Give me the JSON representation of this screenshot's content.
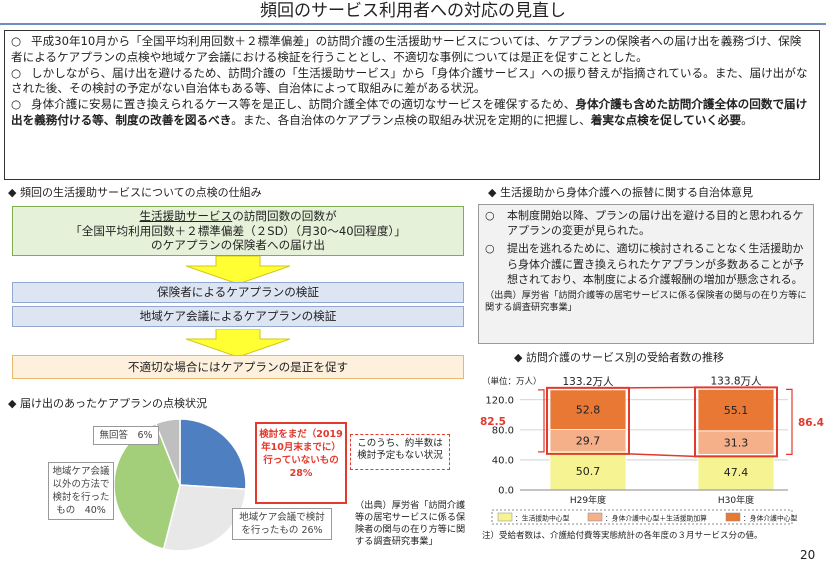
{
  "title": "頻回のサービス利用者への対応の見直し",
  "summary": {
    "bullet": "○",
    "p1": "平成30年10月から「全国平均利用回数＋２標準偏差」の訪問介護の生活援助サービスについては、ケアプランの保険者への届け出を義務づけ、保険者によるケアプランの点検や地域ケア会議における検証を行うこととし、不適切な事例については是正を促すこととした。",
    "p2": "しかしながら、届け出を避けるため、訪問介護の「生活援助サービス」から「身体介護サービス」への振り替えが指摘されている。また、届け出がなされた後、その検討の予定がない自治体もある等、自治体によって取組みに差がある状況。",
    "p3_a": "身体介護に安易に置き換えられるケース等を是正し、訪問介護全体での適切なサービスを確保するため、",
    "p3_b": "身体介護も含めた訪問介護全体の回数で届け出を義務付ける等、制度の改善を図るべき",
    "p3_c": "。また、各自治体のケアプラン点検の取組み状況を定期的に把握し、",
    "p3_d": "着実な点検を促していく必要",
    "p3_e": "。"
  },
  "left": {
    "head1": "◆ 頻回の生活援助サービスについての点検の仕組み",
    "green_line1_u": "生活援助サービス",
    "green_line1_rest": "の訪問回数の回数が",
    "green_line2": "「全国平均利用回数＋２標準偏差（２SD）（月30～40回程度）」",
    "green_line3": "のケアプランの保険者への届け出",
    "step_insurer": "保険者によるケアプランの検証",
    "step_conference": "地域ケア会議によるケアプランの検証",
    "step_correct": "不適切な場合にはケアプランの是正を促す",
    "head2": "◆ 届け出のあったケアプランの点検状況",
    "pie_data": [
      {
        "label": "地域ケア会議で検討を行ったもの",
        "pct": 26,
        "color": "#4e7fc1"
      },
      {
        "label": "検討をまだ(2019年10月末までに)行っていないもの",
        "pct": 28,
        "color": "#e8e8e8"
      },
      {
        "label": "地域ケア会議以外の方法で検討を行ったもの",
        "pct": 40,
        "color": "#a4cf7a"
      },
      {
        "label": "無回答",
        "pct": 6,
        "color": "#bfbfbf"
      }
    ],
    "lbl_noans": "無回答　6%",
    "lbl_other": "地域ケア会議以外の方法で検討を行ったもの　40%",
    "lbl_conf": "地域ケア会議で検討を行ったもの 26%",
    "red_text": "検討をまだ（2019年10月末までに）行っていないもの",
    "red_pct": "28%",
    "dash_text": "このうち、約半数は検討予定もない状況",
    "source": "（出典）厚労省「訪問介護等の居宅サービスに係る保険者の関与の在り方等に関する調査研究事業」"
  },
  "right": {
    "head1": "◆ 生活援助から身体介護への振替に関する自治体意見",
    "op1": "本制度開始以降、プランの届け出を避ける目的と思われるケアプランの変更が見られた。",
    "op2": "提出を逃れるために、適切に検討されることなく生活援助から身体介護に置き換えられたケアプランが多数あることが予想されており、本制度による介護報酬の増加が懸念される。",
    "source": "（出典）厚労省「訪問介護等の居宅サービスに係る保険者の関与の在り方等に関する調査研究事業」",
    "head2": "◆ 訪問介護のサービス別の受給者数の推移",
    "note": "注）受給者数は、介護給付費等実態統計の各年度の３月サービス分の値。"
  },
  "chart_data": {
    "type": "bar",
    "stacked": true,
    "unit_label": "（単位：万人）",
    "categories": [
      "H29年度",
      "H30年度"
    ],
    "totals_labels": [
      "133.2万人",
      "133.8万人"
    ],
    "series": [
      {
        "name": "生活援助中心型",
        "values": [
          50.7,
          47.4
        ],
        "color": "#f6f492"
      },
      {
        "name": "身体介護中心型＋生活援助加算",
        "values": [
          29.7,
          31.3
        ],
        "color": "#f5b08a"
      },
      {
        "name": "身体介護中心型",
        "values": [
          52.8,
          55.1
        ],
        "color": "#ea7835"
      }
    ],
    "side_values": [
      "82.5",
      "86.4"
    ],
    "yticks": [
      "0.0",
      "40.0",
      "80.0",
      "120.0"
    ],
    "ylim": [
      0,
      133
    ],
    "legend": [
      "：生活援助中心型",
      "：身体介護中心型＋生活援助加算",
      "：身体介護中心型"
    ]
  },
  "page_number": "20"
}
